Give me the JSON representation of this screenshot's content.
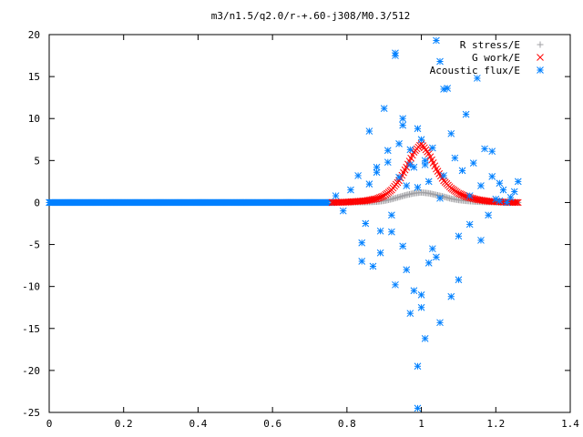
{
  "chart_data": {
    "type": "scatter",
    "title": "m3/n1.5/q2.0/r-+.60-j308/M0.3/512",
    "xlim": [
      0,
      1.4
    ],
    "ylim": [
      -25,
      20
    ],
    "xticks": [
      0,
      0.2,
      0.4,
      0.6,
      0.8,
      1,
      1.2,
      1.4
    ],
    "yticks": [
      -25,
      -20,
      -15,
      -10,
      -5,
      0,
      5,
      10,
      15,
      20
    ],
    "grid": false,
    "legend_position": "top-right",
    "series": [
      {
        "name": "R stress/E",
        "marker": "plus",
        "color": "#a0a0a4",
        "curve": {
          "x": [
            0.76,
            0.8,
            0.85,
            0.88,
            0.9,
            0.92,
            0.94,
            0.96,
            0.98,
            1.0,
            1.02,
            1.04,
            1.06,
            1.08,
            1.1,
            1.12,
            1.15,
            1.18,
            1.22,
            1.26
          ],
          "y": [
            0.0,
            0.02,
            0.05,
            0.1,
            0.2,
            0.4,
            0.65,
            0.9,
            1.1,
            1.2,
            1.1,
            0.9,
            0.7,
            0.45,
            0.3,
            0.2,
            0.1,
            0.05,
            0.02,
            0.0
          ]
        }
      },
      {
        "name": "G work/E",
        "marker": "cross",
        "color": "#ff0000",
        "curve": {
          "x": [
            0.76,
            0.8,
            0.85,
            0.88,
            0.9,
            0.92,
            0.94,
            0.96,
            0.98,
            1.0,
            1.02,
            1.04,
            1.06,
            1.08,
            1.1,
            1.12,
            1.15,
            1.18,
            1.22,
            1.26
          ],
          "y": [
            0.0,
            0.05,
            0.2,
            0.45,
            0.8,
            1.5,
            2.6,
            4.2,
            6.0,
            7.0,
            5.8,
            4.0,
            2.6,
            1.7,
            1.1,
            0.7,
            0.35,
            0.15,
            0.05,
            0.0
          ]
        }
      },
      {
        "name": "Acoustic flux/E",
        "marker": "star",
        "color": "#0080ff",
        "flat_segment": {
          "x_start": 0.0,
          "x_end": 0.76,
          "y": 0
        },
        "x": [
          0.77,
          0.79,
          0.81,
          0.83,
          0.84,
          0.85,
          0.86,
          0.87,
          0.88,
          0.89,
          0.9,
          0.91,
          0.92,
          0.93,
          0.93,
          0.94,
          0.94,
          0.95,
          0.95,
          0.96,
          0.96,
          0.97,
          0.97,
          0.98,
          0.98,
          0.99,
          0.99,
          1.0,
          1.0,
          1.01,
          1.01,
          1.02,
          1.02,
          1.03,
          1.03,
          1.04,
          1.05,
          1.05,
          1.06,
          1.07,
          1.08,
          1.09,
          1.1,
          1.11,
          1.12,
          1.13,
          1.14,
          1.15,
          1.16,
          1.17,
          1.18,
          1.19,
          1.2,
          1.21,
          1.22,
          1.23,
          1.24,
          1.25,
          1.26,
          0.84,
          0.86,
          0.88,
          0.89,
          0.91,
          0.92,
          0.95,
          0.97,
          0.99,
          1.01,
          1.04,
          1.06,
          1.08,
          1.1,
          1.13,
          1.16,
          1.19,
          1.21,
          0.93,
          1.05,
          0.99,
          1.0
        ],
        "y": [
          0.8,
          -1.0,
          1.5,
          3.2,
          -4.8,
          -2.5,
          8.5,
          -7.6,
          3.6,
          -6.0,
          11.2,
          4.8,
          -3.5,
          17.8,
          -9.8,
          7.0,
          3.0,
          -5.2,
          10.0,
          2.0,
          -8.0,
          -13.2,
          6.3,
          -10.5,
          4.2,
          -19.5,
          1.8,
          7.5,
          -11.0,
          4.5,
          -16.2,
          -7.2,
          2.5,
          -5.5,
          6.5,
          19.3,
          -14.3,
          0.5,
          3.2,
          13.6,
          -11.2,
          5.3,
          -4.0,
          3.8,
          10.5,
          -2.6,
          4.7,
          14.8,
          -4.5,
          6.4,
          -1.5,
          3.1,
          0.4,
          0.2,
          1.5,
          0.0,
          0.6,
          1.3,
          2.5,
          -7.0,
          2.2,
          4.2,
          -3.4,
          6.2,
          -1.5,
          9.2,
          4.5,
          8.8,
          5.0,
          -6.5,
          13.5,
          8.2,
          -9.2,
          0.8,
          2.0,
          6.1,
          2.3,
          17.5,
          16.8,
          -24.5,
          -12.5
        ]
      }
    ]
  }
}
